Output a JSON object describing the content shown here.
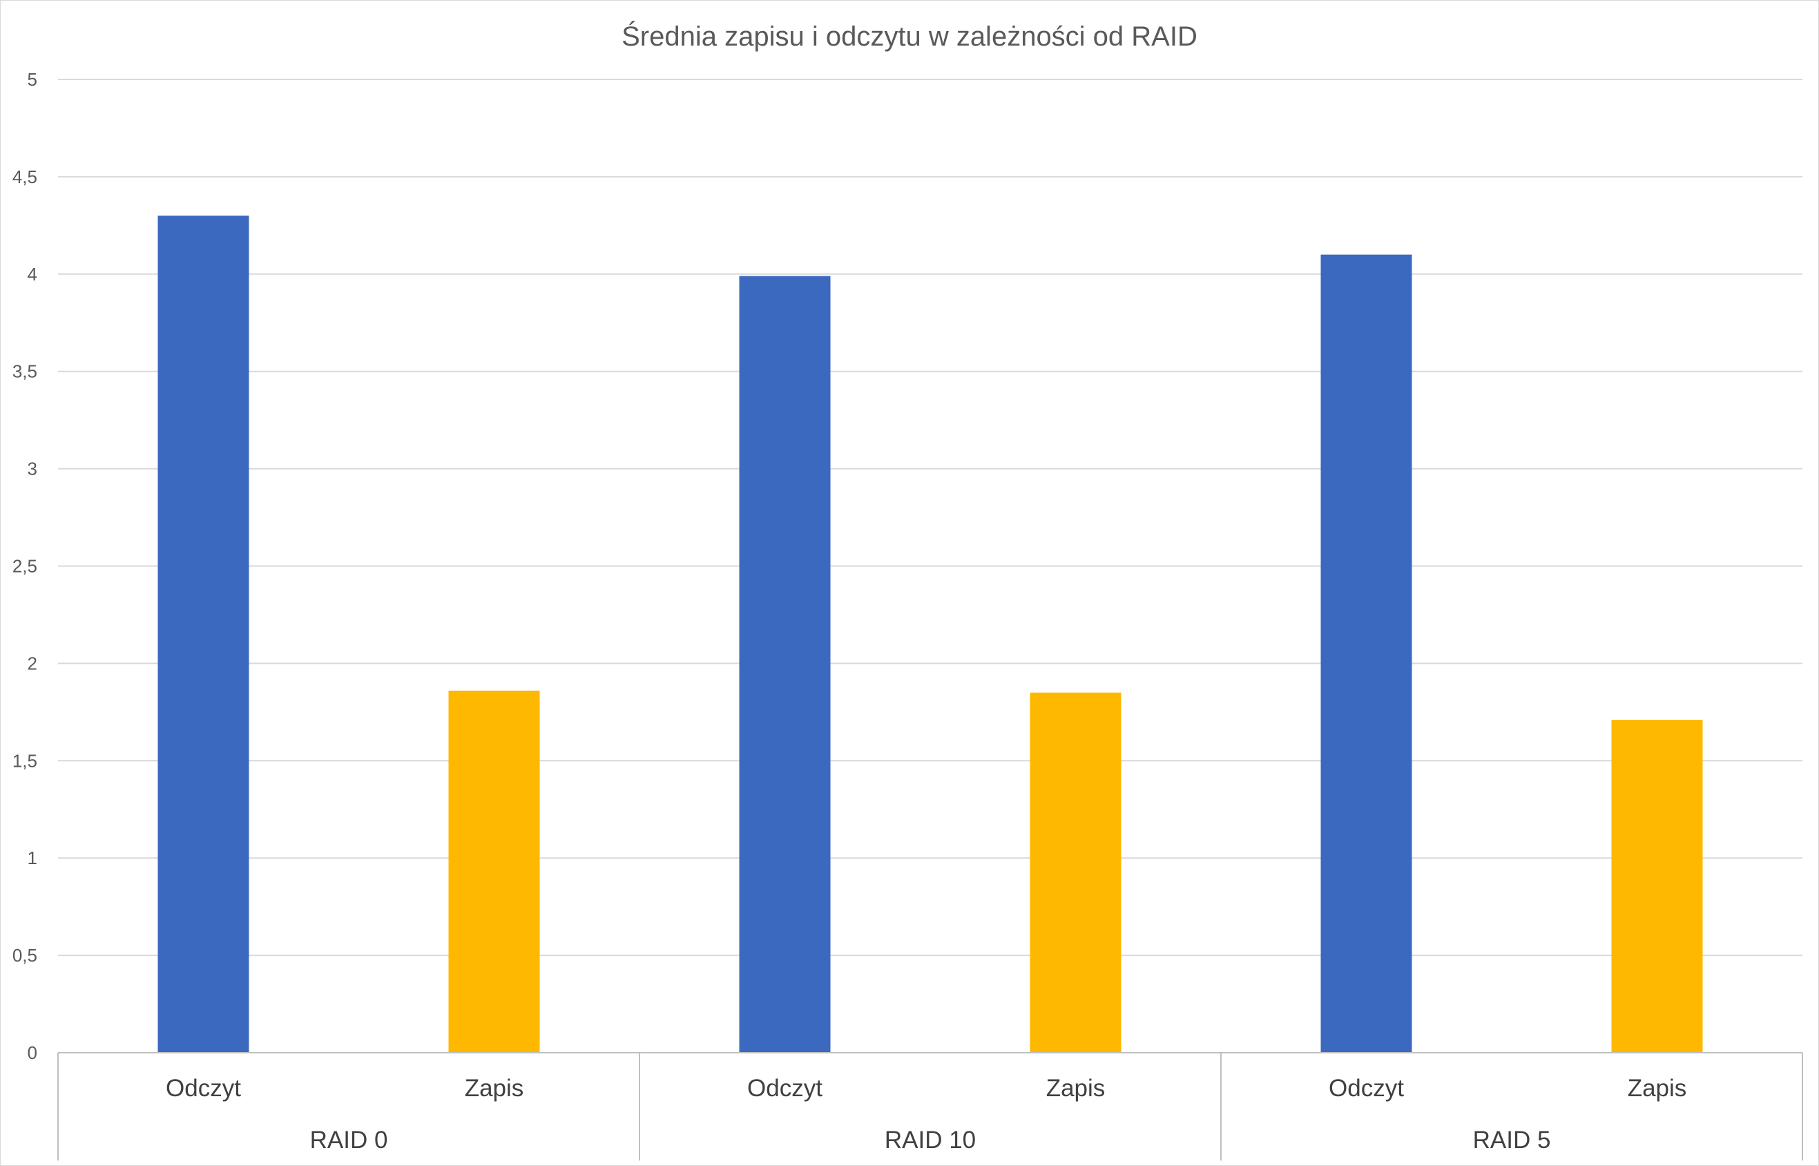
{
  "chart_data": {
    "type": "bar",
    "title": "Średnia zapisu i odczytu w zależności od RAID",
    "xlabel": "",
    "ylabel": "",
    "ylim": [
      0,
      5
    ],
    "yticks": [
      "0",
      "0,5",
      "1",
      "1,5",
      "2",
      "2,5",
      "3",
      "3,5",
      "4",
      "4,5",
      "5"
    ],
    "ytick_values": [
      0,
      0.5,
      1,
      1.5,
      2,
      2.5,
      3,
      3.5,
      4,
      4.5,
      5
    ],
    "grid": true,
    "legend": "none",
    "groups": [
      {
        "label": "RAID 0",
        "bars": [
          {
            "label": "Odczyt",
            "value": 4.3
          },
          {
            "label": "Zapis",
            "value": 1.86
          }
        ]
      },
      {
        "label": "RAID 10",
        "bars": [
          {
            "label": "Odczyt",
            "value": 3.99
          },
          {
            "label": "Zapis",
            "value": 1.85
          }
        ]
      },
      {
        "label": "RAID 5",
        "bars": [
          {
            "label": "Odczyt",
            "value": 4.1
          },
          {
            "label": "Zapis",
            "value": 1.71
          }
        ]
      }
    ],
    "colors": {
      "Odczyt": "#3b69bf",
      "Zapis": "#ffb800"
    }
  }
}
